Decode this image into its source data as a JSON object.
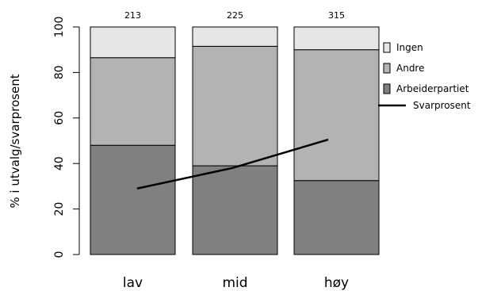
{
  "chart_data": {
    "type": "bar",
    "stacked": true,
    "categories": [
      "lav",
      "mid",
      "høy"
    ],
    "counts": [
      "213",
      "225",
      "315"
    ],
    "series": [
      {
        "name": "Arbeiderpartiet",
        "values": [
          48,
          39,
          32.5
        ],
        "color": "#808080"
      },
      {
        "name": "Andre",
        "values": [
          38.5,
          52.5,
          57.5
        ],
        "color": "#b3b3b3"
      },
      {
        "name": "Ingen",
        "values": [
          13.5,
          8.5,
          10
        ],
        "color": "#e6e6e6"
      }
    ],
    "line_series": {
      "name": "Svarprosent",
      "values": [
        29,
        38,
        50.5
      ],
      "color": "#000000"
    },
    "ylabel": "% i utvalg/svarprosent",
    "ylim": [
      0,
      100
    ],
    "yticks": [
      0,
      20,
      40,
      60,
      80,
      100
    ],
    "legend_position": "right",
    "legend_order": [
      "Ingen",
      "Andre",
      "Arbeiderpartiet",
      "Svarprosent"
    ],
    "grid": false
  }
}
